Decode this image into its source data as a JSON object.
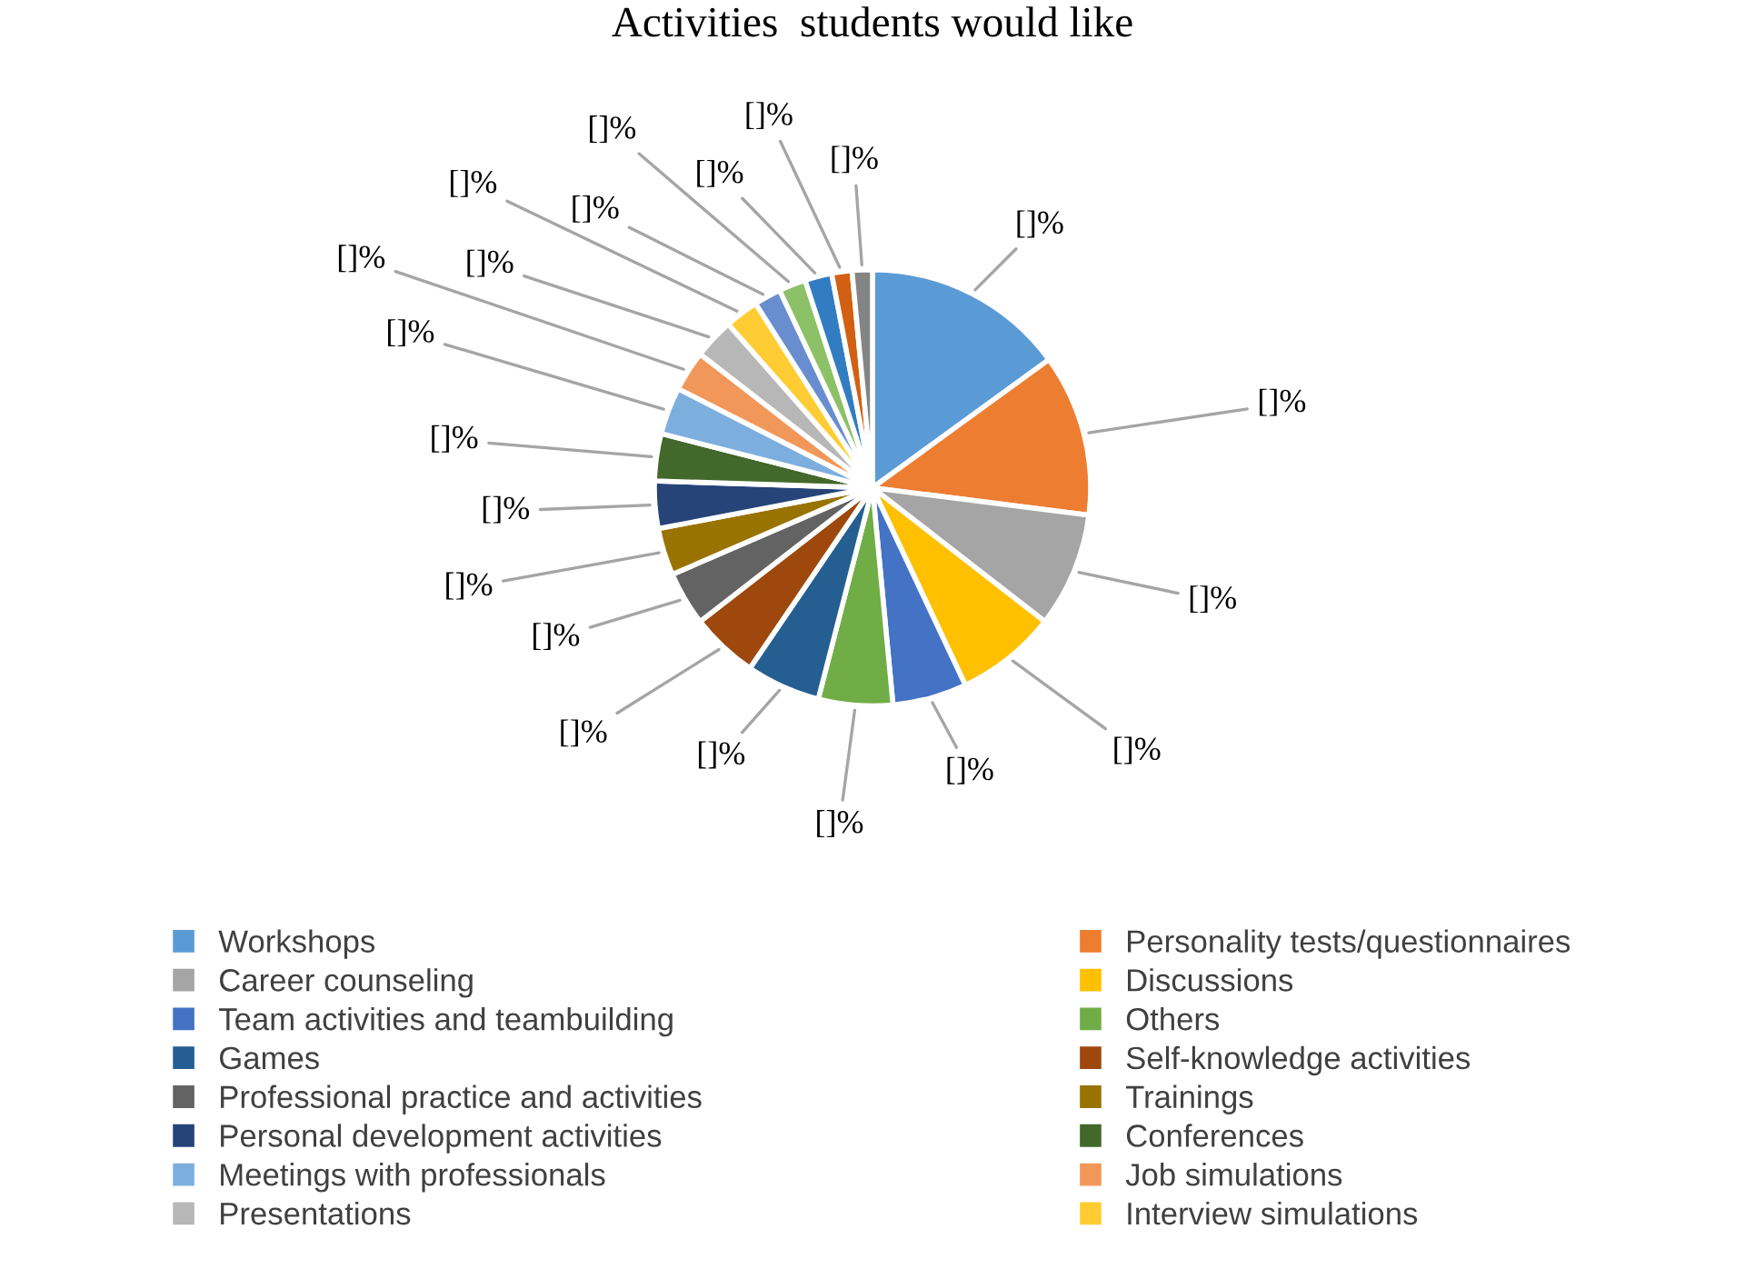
{
  "chart_data": {
    "type": "pie",
    "title": "Activities  students would like",
    "categories": [
      "Workshops",
      "Personality tests/questionnaires",
      "Career counseling",
      "Discussions",
      "Team activities and teambuilding",
      "Others",
      "Games",
      "Self-knowledge activities",
      "Professional practice and activities",
      "Trainings",
      "Personal development activities",
      "Conferences",
      "Meetings with professionals",
      "Job simulations",
      "Presentations",
      "Interview simulations",
      null,
      null,
      null,
      null,
      null
    ],
    "values": [
      15,
      12,
      8.5,
      7.5,
      5.5,
      5.5,
      5.5,
      5,
      4,
      3.5,
      3.5,
      3.5,
      3.5,
      3,
      3,
      2.5,
      2,
      2,
      2,
      1.5,
      1.5
    ],
    "colors": [
      "#5b9bd5",
      "#ed7d31",
      "#a5a5a5",
      "#ffc000",
      "#4472c4",
      "#70ad47",
      "#255e91",
      "#9e480e",
      "#636363",
      "#997300",
      "#264478",
      "#43682b",
      "#7cafdd",
      "#f1975a",
      "#b7b7b7",
      "#ffcd33",
      "#698ed0",
      "#8cc168",
      "#327dc2",
      "#d26012",
      "#848484"
    ],
    "value_labels": [
      "[]%",
      "[]%",
      "[]%",
      "[]%",
      "[]%",
      "[]%",
      "[]%",
      "[]%",
      "[]%",
      "[]%",
      "[]%",
      "[]%",
      "[]%",
      "[]%",
      "[]%",
      "[]%",
      "[]%",
      "[]%",
      "[]%",
      "[]%",
      "[]%"
    ],
    "legend": "bottom"
  }
}
